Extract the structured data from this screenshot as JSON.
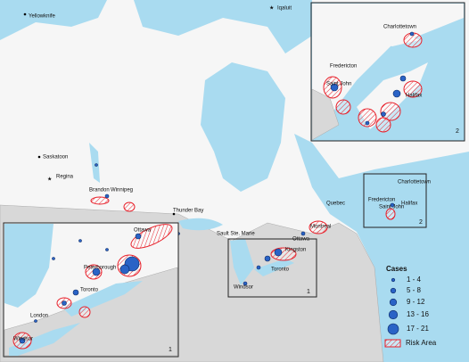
{
  "map": {
    "cities": [
      "Yellowknife",
      "Iqaluit",
      "Saskatoon",
      "Regina",
      "Brandon",
      "Winnipeg",
      "Thunder Bay",
      "Sault Ste. Marie",
      "Quebec",
      "Montreal",
      "Ottawa",
      "Kingston",
      "Toronto",
      "Windsor",
      "Fredericton",
      "Saint John",
      "Charlottetown",
      "Halifax"
    ],
    "inset_1": {
      "number": "1",
      "cities": [
        "Ottawa",
        "Peterborough",
        "Toronto",
        "London",
        "Windsor"
      ]
    },
    "inset_2": {
      "number": "2",
      "cities": [
        "Charlottetown",
        "Fredericton",
        "Saint John",
        "Halifax"
      ]
    },
    "box_1": {
      "number": "1"
    },
    "box_2": {
      "number": "2"
    },
    "legend": {
      "title": "Cases",
      "items": [
        "1 - 4",
        "5 - 8",
        "9 - 12",
        "13 - 16",
        "17 - 21"
      ],
      "risk_area": "Risk Area"
    }
  }
}
